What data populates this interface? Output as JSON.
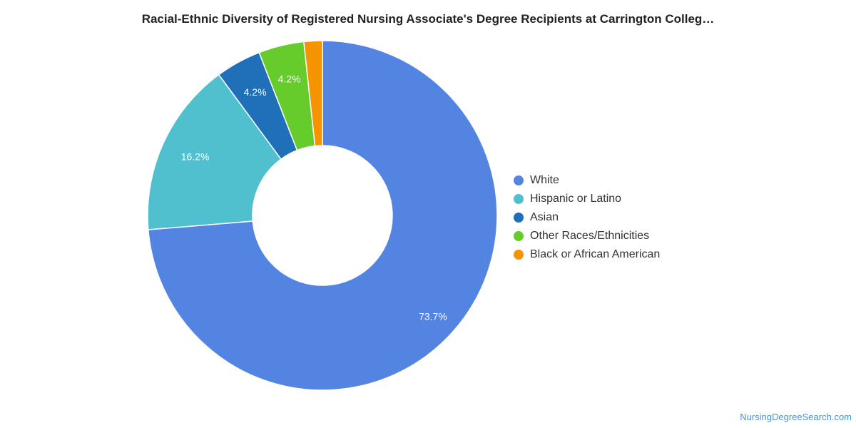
{
  "chart_data": {
    "type": "pie",
    "variant": "donut",
    "title": "Racial-Ethnic Diversity of Registered Nursing Associate's Degree Recipients at Carrington Colleg…",
    "slices": [
      {
        "label": "White",
        "value": 73.7,
        "display": "73.7%",
        "color": "#5484e2"
      },
      {
        "label": "Hispanic or Latino",
        "value": 16.2,
        "display": "16.2%",
        "color": "#50c0cf"
      },
      {
        "label": "Asian",
        "value": 4.2,
        "display": "4.2%",
        "color": "#1f70b8"
      },
      {
        "label": "Other Races/Ethnicities",
        "value": 4.2,
        "display": "4.2%",
        "color": "#65cc2b"
      },
      {
        "label": "Black or African American",
        "value": 1.7,
        "display": "",
        "color": "#f59400"
      }
    ],
    "legend_position": "right"
  },
  "footer": {
    "source": "NursingDegreeSearch.com"
  }
}
